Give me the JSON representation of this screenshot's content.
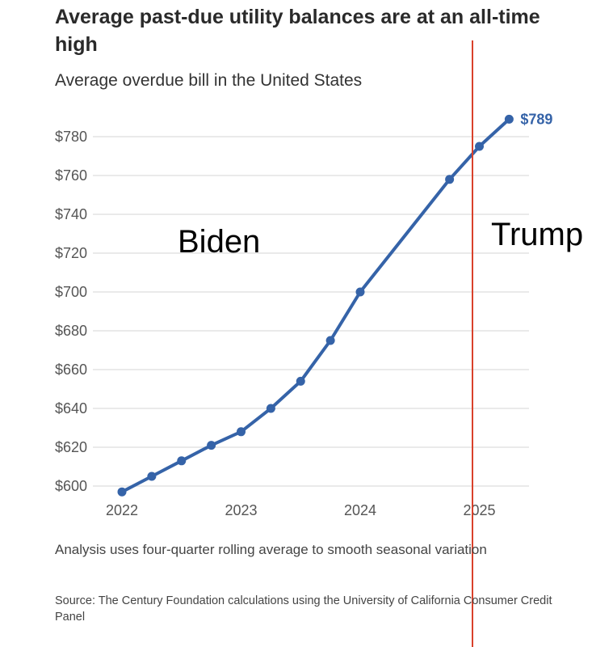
{
  "chart_data": {
    "type": "line",
    "title": "Average past-due utility balances are at an all-time high",
    "subtitle": "Average overdue bill in the United States",
    "xlabel": "",
    "ylabel": "",
    "ylim": [
      600,
      790
    ],
    "xlim": [
      2022,
      2025.35
    ],
    "yticks": [
      600,
      620,
      640,
      660,
      680,
      700,
      720,
      740,
      760,
      780
    ],
    "ytick_labels": [
      "$600",
      "$620",
      "$640",
      "$660",
      "$680",
      "$700",
      "$720",
      "$740",
      "$760",
      "$780"
    ],
    "xticks": [
      2022,
      2023,
      2024,
      2025
    ],
    "xtick_labels": [
      "2022",
      "2023",
      "2024",
      "2025"
    ],
    "grid": true,
    "series": [
      {
        "name": "Average overdue bill",
        "color": "#3563a8",
        "x": [
          2022,
          2022.25,
          2022.5,
          2022.75,
          2023,
          2023.25,
          2023.5,
          2023.75,
          2024,
          2024.75,
          2025,
          2025.25
        ],
        "values": [
          597,
          605,
          613,
          621,
          628,
          640,
          654,
          675,
          700,
          758,
          775,
          789
        ]
      }
    ],
    "end_label": "$789",
    "divider": {
      "x": 2024.95,
      "color": "#d9412b"
    },
    "annotations": [
      {
        "text": "Biden",
        "x": 2022.85,
        "y": 723
      },
      {
        "text": "Trump",
        "x": 2025.15,
        "y": 727
      }
    ],
    "note": "Analysis uses four-quarter rolling average to smooth seasonal variation",
    "source": "Source: The Century Foundation calculations using the University of California Consumer Credit Panel"
  }
}
